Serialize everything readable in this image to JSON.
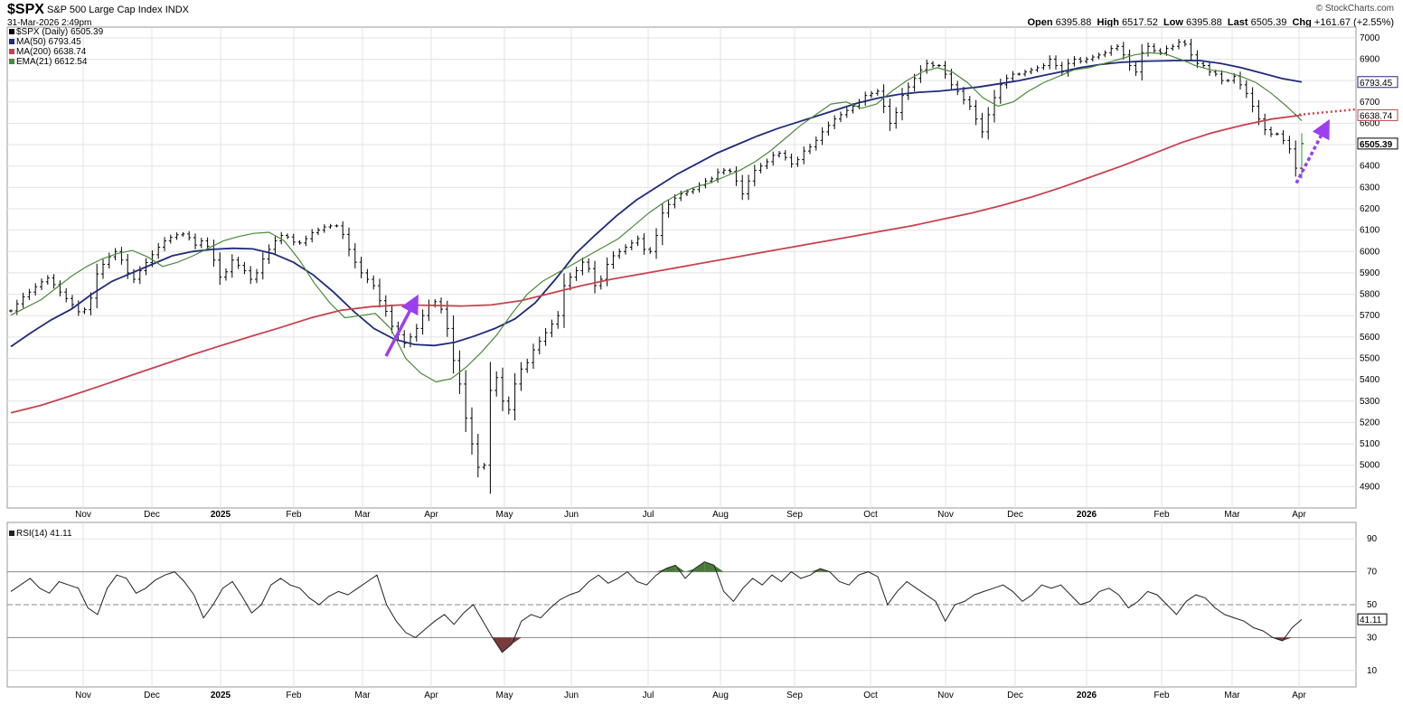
{
  "header": {
    "symbol": "$SPX",
    "name": "S&P 500 Large Cap Index",
    "exchange": "INDX",
    "datetime": "31-Mar-2026 2:49pm",
    "brand": "© StockCharts.com",
    "open_label": "Open",
    "open": "6395.88",
    "high_label": "High",
    "high": "6517.52",
    "low_label": "Low",
    "low": "6395.88",
    "last_label": "Last",
    "last": "6505.39",
    "chg_label": "Chg",
    "chg": "+161.67 (+2.55%)"
  },
  "legend": {
    "price": "$SPX (Daily) 6505.39",
    "ma50": "MA(50) 6793.45",
    "ma200": "MA(200) 6638.74",
    "ema21": "EMA(21) 6612.54"
  },
  "colors": {
    "price": "#000000",
    "ma50": "#1f2a7a",
    "ma200": "#c8424e",
    "ema21": "#4a8a3a",
    "arrow": "#9b3ff0",
    "rsi": "#222222",
    "rsi_over": "#4a7a3a",
    "rsi_under": "#7a3a3a",
    "grid": "#e3e3e3"
  },
  "chart_data": [
    {
      "type": "line",
      "panel": "price",
      "y_ticks": [
        4900,
        5000,
        5100,
        5200,
        5300,
        5400,
        5500,
        5600,
        5700,
        5800,
        5900,
        6000,
        6100,
        6200,
        6300,
        6400,
        6500,
        6600,
        6700,
        6800,
        6900,
        7000
      ],
      "ylim": [
        4800,
        7050
      ],
      "x_ticks": [
        "Nov",
        "Dec",
        "2025",
        "Feb",
        "Mar",
        "Apr",
        "May",
        "Jun",
        "Jul",
        "Aug",
        "Sep",
        "Oct",
        "Nov",
        "Dec",
        "2026",
        "Feb",
        "Mar",
        "Apr"
      ],
      "last_labels": {
        "ma50": "6793.45",
        "ma200": "6638.74",
        "price": "6505.39"
      },
      "series": [
        {
          "name": "$SPX (Daily)",
          "style": "bar",
          "values": [
            5722,
            5755,
            5788,
            5810,
            5835,
            5858,
            5876,
            5845,
            5810,
            5780,
            5752,
            5718,
            5728,
            5782,
            5895,
            5940,
            5975,
            6000,
            5960,
            5900,
            5870,
            5910,
            5948,
            5985,
            6020,
            6050,
            6066,
            6078,
            6082,
            6065,
            6030,
            6050,
            6025,
            5960,
            5880,
            5905,
            5960,
            5935,
            5910,
            5870,
            5900,
            5965,
            6010,
            6050,
            6075,
            6068,
            6044,
            6040,
            6060,
            6088,
            6100,
            6115,
            6120,
            6120,
            6080,
            6010,
            5950,
            5900,
            5870,
            5840,
            5770,
            5720,
            5650,
            5610,
            5570,
            5600,
            5640,
            5700,
            5750,
            5765,
            5730,
            5640,
            5490,
            5380,
            5220,
            5100,
            4990,
            5000,
            5350,
            5410,
            5300,
            5260,
            5380,
            5450,
            5480,
            5540,
            5580,
            5620,
            5660,
            5700,
            5840,
            5880,
            5910,
            5950,
            5920,
            5840,
            5870,
            5940,
            5980,
            6000,
            6020,
            6040,
            6060,
            6010,
            6000,
            6075,
            6180,
            6220,
            6250,
            6270,
            6280,
            6290,
            6310,
            6330,
            6340,
            6370,
            6380,
            6375,
            6330,
            6270,
            6330,
            6380,
            6400,
            6420,
            6450,
            6460,
            6440,
            6410,
            6430,
            6470,
            6490,
            6520,
            6560,
            6590,
            6620,
            6640,
            6660,
            6680,
            6700,
            6730,
            6740,
            6750,
            6680,
            6600,
            6650,
            6730,
            6770,
            6810,
            6850,
            6880,
            6870,
            6870,
            6830,
            6780,
            6750,
            6710,
            6680,
            6620,
            6560,
            6640,
            6720,
            6780,
            6810,
            6830,
            6830,
            6840,
            6850,
            6860,
            6870,
            6900,
            6870,
            6840,
            6880,
            6900,
            6890,
            6900,
            6910,
            6920,
            6930,
            6950,
            6960,
            6920,
            6870,
            6840,
            6930,
            6960,
            6940,
            6930,
            6950,
            6960,
            6980,
            6970,
            6920,
            6880,
            6870,
            6840,
            6830,
            6800,
            6800,
            6820,
            6780,
            6740,
            6680,
            6620,
            6570,
            6550,
            6550,
            6520,
            6480,
            6390,
            6505
          ]
        },
        {
          "name": "MA(50)",
          "values": [
            5555,
            5620,
            5680,
            5730,
            5800,
            5860,
            5900,
            5940,
            5980,
            6000,
            6010,
            6015,
            6012,
            5990,
            5950,
            5890,
            5810,
            5720,
            5640,
            5590,
            5565,
            5560,
            5575,
            5605,
            5640,
            5685,
            5760,
            5870,
            5990,
            6080,
            6165,
            6240,
            6300,
            6360,
            6410,
            6460,
            6500,
            6540,
            6575,
            6605,
            6635,
            6665,
            6695,
            6718,
            6735,
            6745,
            6750,
            6760,
            6770,
            6785,
            6800,
            6820,
            6840,
            6860,
            6875,
            6885,
            6890,
            6892,
            6894,
            6893,
            6880,
            6860,
            6835,
            6810,
            6793
          ]
        },
        {
          "name": "MA(200)",
          "values": [
            5245,
            5280,
            5325,
            5372,
            5420,
            5468,
            5515,
            5560,
            5603,
            5645,
            5690,
            5725,
            5742,
            5750,
            5748,
            5745,
            5750,
            5770,
            5805,
            5840,
            5870,
            5895,
            5920,
            5945,
            5970,
            5995,
            6020,
            6045,
            6070,
            6095,
            6120,
            6150,
            6180,
            6215,
            6255,
            6300,
            6350,
            6400,
            6455,
            6510,
            6555,
            6590,
            6620,
            6638
          ]
        },
        {
          "name": "EMA(21)",
          "values": [
            5702,
            5738,
            5775,
            5830,
            5885,
            5930,
            5965,
            5990,
            6005,
            5975,
            5930,
            5950,
            5980,
            6015,
            6050,
            6070,
            6085,
            6090,
            6050,
            5960,
            5850,
            5760,
            5690,
            5700,
            5710,
            5640,
            5500,
            5430,
            5390,
            5405,
            5460,
            5530,
            5610,
            5710,
            5800,
            5860,
            5900,
            5940,
            5980,
            6020,
            6060,
            6120,
            6180,
            6230,
            6270,
            6300,
            6320,
            6350,
            6380,
            6420,
            6470,
            6530,
            6590,
            6640,
            6690,
            6700,
            6670,
            6690,
            6750,
            6800,
            6840,
            6860,
            6840,
            6790,
            6720,
            6680,
            6700,
            6750,
            6790,
            6820,
            6850,
            6860,
            6880,
            6900,
            6920,
            6930,
            6925,
            6900,
            6870,
            6850,
            6840,
            6820,
            6790,
            6740,
            6680,
            6612
          ]
        }
      ]
    },
    {
      "type": "line",
      "panel": "rsi",
      "title": "RSI(14) 41.11",
      "ylim": [
        0,
        100
      ],
      "y_ticks": [
        10,
        30,
        50,
        70,
        90
      ],
      "reference_lines": [
        30,
        50,
        70
      ],
      "last_label": "41.11",
      "series": [
        {
          "name": "RSI(14)",
          "values": [
            58,
            62,
            66,
            60,
            57,
            64,
            62,
            60,
            48,
            44,
            60,
            68,
            66,
            57,
            60,
            65,
            68,
            70,
            64,
            56,
            42,
            50,
            60,
            64,
            55,
            45,
            50,
            62,
            66,
            62,
            60,
            54,
            50,
            55,
            58,
            56,
            60,
            64,
            68,
            50,
            40,
            33,
            30,
            35,
            40,
            44,
            38,
            45,
            50,
            40,
            30,
            21,
            26,
            40,
            44,
            42,
            48,
            53,
            56,
            58,
            64,
            68,
            63,
            66,
            70,
            64,
            62,
            68,
            72,
            74,
            66,
            72,
            76,
            74,
            58,
            52,
            60,
            66,
            62,
            68,
            64,
            70,
            66,
            68,
            72,
            70,
            64,
            62,
            68,
            70,
            67,
            50,
            58,
            64,
            60,
            56,
            52,
            40,
            50,
            52,
            56,
            58,
            60,
            62,
            58,
            52,
            56,
            62,
            60,
            62,
            56,
            50,
            52,
            58,
            60,
            56,
            48,
            52,
            58,
            56,
            50,
            44,
            52,
            56,
            54,
            48,
            44,
            42,
            40,
            36,
            34,
            30,
            28,
            36,
            41
          ]
        }
      ]
    }
  ]
}
